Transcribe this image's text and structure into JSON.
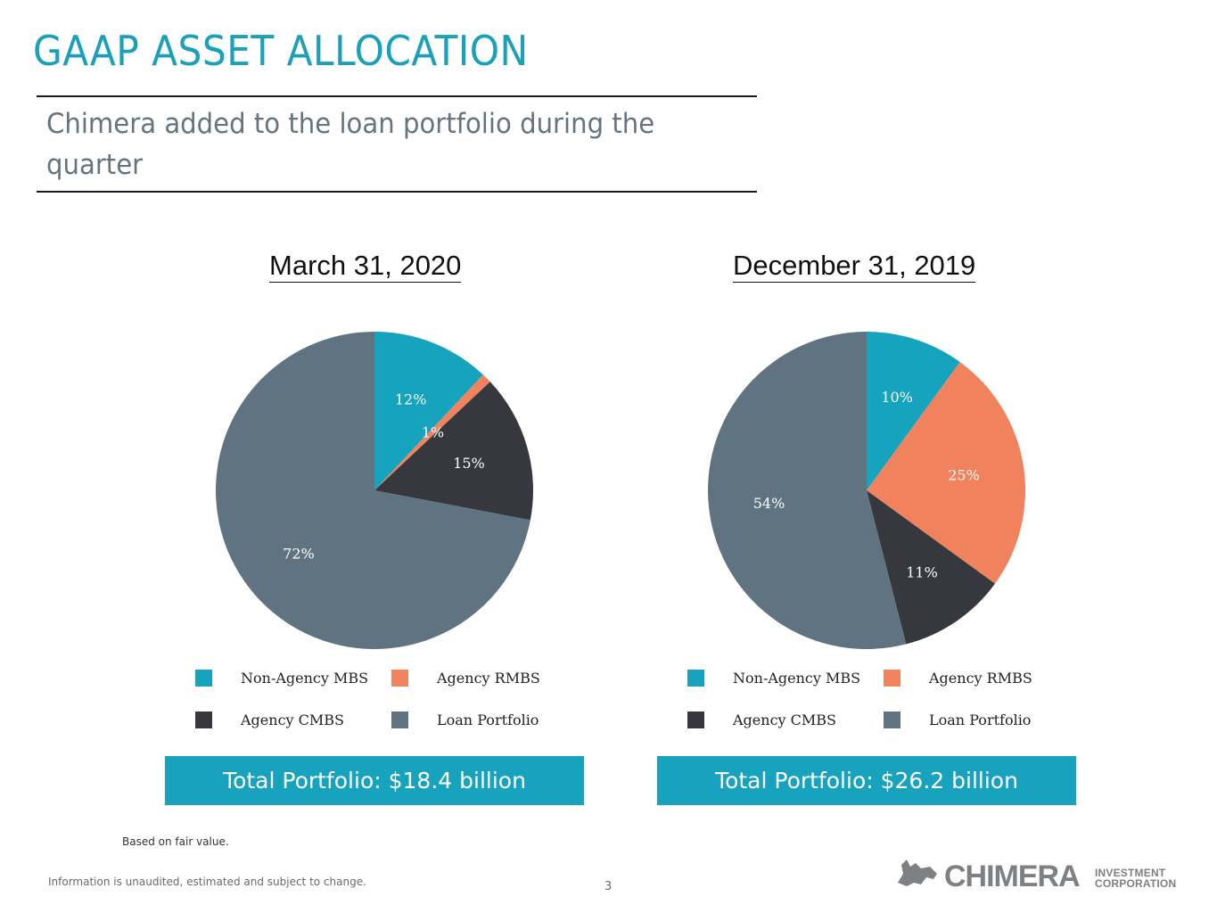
{
  "page": {
    "title": "GAAP ASSET ALLOCATION",
    "subtitle": "Chimera added to the loan portfolio during the quarter",
    "footnote": "Based on fair value.",
    "disclaimer": "Information is unaudited, estimated and subject to change.",
    "page_number": "3"
  },
  "logo": {
    "word": "CHIMERA",
    "sub1": "INVESTMENT",
    "sub2": "CORPORATION"
  },
  "colors": {
    "Non-Agency MBS": "#15a3be",
    "Agency RMBS": "#f0825e",
    "Agency CMBS": "#36383e",
    "Loan Portfolio": "#5f7480",
    "title": "#1aa0b9",
    "total_box": "#17a2bd"
  },
  "chart_data": [
    {
      "type": "pie",
      "title": "March 31, 2020",
      "categories": [
        "Non-Agency MBS",
        "Agency RMBS",
        "Agency CMBS",
        "Loan Portfolio"
      ],
      "values": [
        12,
        1,
        15,
        72
      ],
      "data_labels": [
        "12%",
        "1%",
        "15%",
        "72%"
      ],
      "legend": [
        "Non-Agency MBS",
        "Agency RMBS",
        "Agency CMBS",
        "Loan Portfolio"
      ],
      "legend_position": "bottom",
      "total": "Total Portfolio: $18.4 billion"
    },
    {
      "type": "pie",
      "title": "December 31, 2019",
      "categories": [
        "Non-Agency MBS",
        "Agency RMBS",
        "Agency CMBS",
        "Loan Portfolio"
      ],
      "values": [
        10,
        25,
        11,
        54
      ],
      "data_labels": [
        "10%",
        "25%",
        "11%",
        "54%"
      ],
      "legend": [
        "Non-Agency MBS",
        "Agency RMBS",
        "Agency CMBS",
        "Loan Portfolio"
      ],
      "legend_position": "bottom",
      "total": "Total Portfolio: $26.2 billion"
    }
  ]
}
